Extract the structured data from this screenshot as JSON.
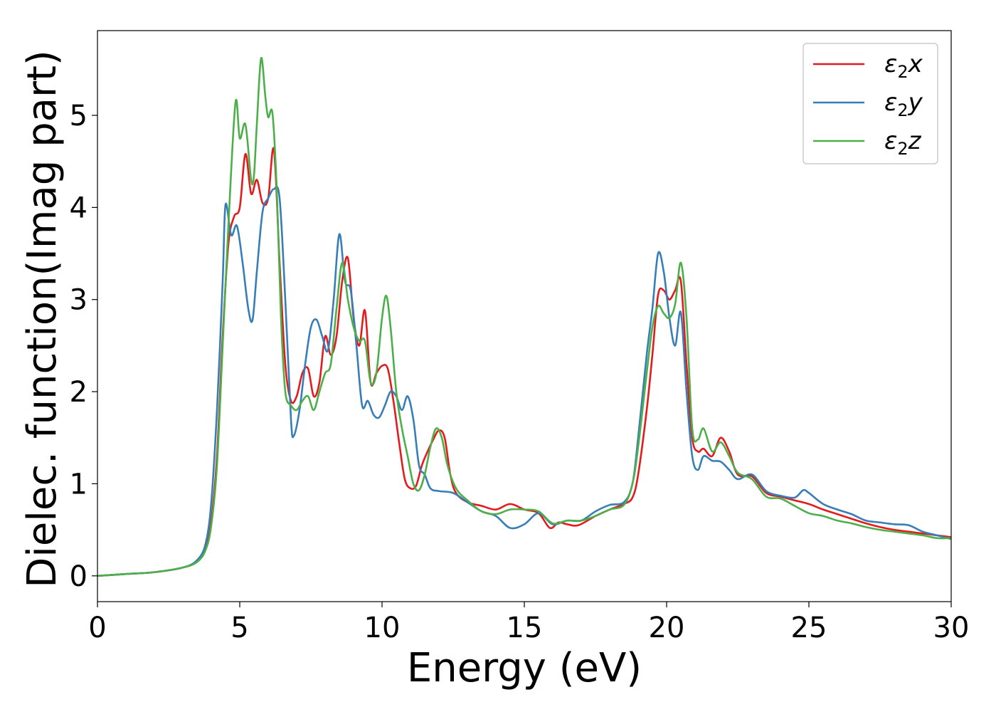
{
  "chart_data": {
    "type": "line",
    "title": "",
    "xlabel": "Energy (eV)",
    "ylabel": "Dielec. function(Imag part)",
    "xlim": [
      0,
      30
    ],
    "ylim": [
      -0.28,
      5.92
    ],
    "xticks": [
      0,
      5,
      10,
      15,
      20,
      25,
      30
    ],
    "yticks": [
      0,
      1,
      2,
      3,
      4,
      5
    ],
    "grid": false,
    "legend_position": "top-right",
    "series": [
      {
        "name": "ε₂x",
        "name_main": "ε",
        "name_sub": "2",
        "name_tail": "x",
        "color": "#e41a1c",
        "x": [
          0,
          1,
          2,
          3,
          3.5,
          3.8,
          4.0,
          4.2,
          4.4,
          4.6,
          4.8,
          5.0,
          5.2,
          5.4,
          5.6,
          5.8,
          6.0,
          6.2,
          6.4,
          6.6,
          6.8,
          7.0,
          7.2,
          7.4,
          7.6,
          7.8,
          8.0,
          8.2,
          8.4,
          8.6,
          8.8,
          9.0,
          9.2,
          9.4,
          9.6,
          9.8,
          10.0,
          10.2,
          10.4,
          10.6,
          10.8,
          11.0,
          11.2,
          11.4,
          11.6,
          11.8,
          12.0,
          12.2,
          12.4,
          12.6,
          13.0,
          13.5,
          14.0,
          14.5,
          15.0,
          15.5,
          15.9,
          16.2,
          16.5,
          16.9,
          17.5,
          18.0,
          18.5,
          18.8,
          19.0,
          19.3,
          19.5,
          19.7,
          19.9,
          20.1,
          20.3,
          20.5,
          20.7,
          20.9,
          21.1,
          21.3,
          21.6,
          21.9,
          22.2,
          22.5,
          23.0,
          23.5,
          24.0,
          24.5,
          25.0,
          25.5,
          26.0,
          26.5,
          27.0,
          27.5,
          28.0,
          28.5,
          29.0,
          29.5,
          30.0
        ],
        "y": [
          0,
          0.02,
          0.04,
          0.09,
          0.16,
          0.3,
          0.6,
          1.3,
          2.6,
          3.6,
          3.9,
          4.0,
          4.58,
          4.15,
          4.3,
          4.05,
          4.1,
          4.63,
          3.4,
          2.3,
          1.9,
          1.95,
          2.2,
          2.25,
          1.95,
          2.1,
          2.6,
          2.4,
          2.6,
          3.2,
          3.45,
          2.8,
          2.5,
          2.88,
          2.1,
          2.2,
          2.28,
          2.25,
          1.9,
          1.45,
          1.05,
          0.95,
          0.98,
          1.2,
          1.35,
          1.48,
          1.58,
          1.5,
          1.1,
          0.9,
          0.8,
          0.76,
          0.72,
          0.78,
          0.72,
          0.68,
          0.52,
          0.58,
          0.56,
          0.55,
          0.65,
          0.72,
          0.78,
          0.85,
          1.1,
          1.8,
          2.4,
          3.05,
          3.1,
          3.0,
          3.1,
          3.2,
          2.3,
          1.5,
          1.35,
          1.38,
          1.3,
          1.5,
          1.35,
          1.1,
          1.08,
          0.9,
          0.86,
          0.82,
          0.78,
          0.72,
          0.67,
          0.62,
          0.57,
          0.53,
          0.5,
          0.48,
          0.46,
          0.44,
          0.42
        ]
      },
      {
        "name": "ε₂y",
        "name_main": "ε",
        "name_sub": "2",
        "name_tail": "y",
        "color": "#377eb8",
        "x": [
          0,
          1,
          2,
          3,
          3.5,
          3.8,
          4.0,
          4.2,
          4.4,
          4.5,
          4.7,
          4.9,
          5.1,
          5.3,
          5.45,
          5.6,
          5.8,
          6.0,
          6.2,
          6.4,
          6.6,
          6.8,
          6.9,
          7.1,
          7.3,
          7.5,
          7.7,
          7.9,
          8.1,
          8.3,
          8.5,
          8.7,
          8.9,
          9.1,
          9.3,
          9.5,
          9.7,
          9.9,
          10.1,
          10.3,
          10.5,
          10.7,
          10.9,
          11.1,
          11.3,
          11.5,
          11.7,
          12.0,
          12.5,
          13.0,
          13.5,
          14.0,
          14.5,
          15.0,
          15.5,
          16.0,
          16.5,
          17.0,
          17.5,
          18.0,
          18.5,
          18.8,
          19.0,
          19.3,
          19.5,
          19.7,
          19.9,
          20.1,
          20.3,
          20.5,
          20.7,
          20.9,
          21.1,
          21.3,
          21.6,
          21.9,
          22.2,
          22.5,
          23.0,
          23.5,
          24.0,
          24.5,
          24.8,
          25.0,
          25.5,
          26.0,
          26.5,
          27.0,
          27.5,
          28.0,
          28.5,
          29.0,
          29.5,
          30.0
        ],
        "y": [
          0,
          0.02,
          0.04,
          0.09,
          0.17,
          0.35,
          0.8,
          1.8,
          3.2,
          4.03,
          3.7,
          3.8,
          3.4,
          2.9,
          2.78,
          3.3,
          3.95,
          4.1,
          4.2,
          4.1,
          3.0,
          1.7,
          1.52,
          1.8,
          2.3,
          2.7,
          2.78,
          2.6,
          2.45,
          3.0,
          3.71,
          3.2,
          3.1,
          2.5,
          1.85,
          1.9,
          1.75,
          1.72,
          1.85,
          2.0,
          1.95,
          1.8,
          1.95,
          1.7,
          1.2,
          1.1,
          0.95,
          0.92,
          0.9,
          0.8,
          0.7,
          0.65,
          0.52,
          0.56,
          0.68,
          0.56,
          0.6,
          0.6,
          0.7,
          0.77,
          0.8,
          1.0,
          1.5,
          2.4,
          2.9,
          3.5,
          3.3,
          2.8,
          2.5,
          2.86,
          2.0,
          1.3,
          1.15,
          1.3,
          1.25,
          1.24,
          1.15,
          1.05,
          1.1,
          0.92,
          0.87,
          0.85,
          0.93,
          0.9,
          0.78,
          0.72,
          0.67,
          0.6,
          0.58,
          0.56,
          0.55,
          0.48,
          0.44,
          0.4
        ]
      },
      {
        "name": "ε₂z",
        "name_main": "ε",
        "name_sub": "2",
        "name_tail": "z",
        "color": "#4daf4a",
        "x": [
          0,
          1,
          2,
          3,
          3.5,
          3.8,
          4.0,
          4.2,
          4.4,
          4.6,
          4.85,
          5.0,
          5.2,
          5.4,
          5.5,
          5.6,
          5.75,
          5.9,
          6.0,
          6.15,
          6.3,
          6.45,
          6.6,
          6.8,
          7.0,
          7.2,
          7.4,
          7.6,
          7.8,
          8.0,
          8.2,
          8.4,
          8.6,
          8.8,
          9.0,
          9.2,
          9.4,
          9.6,
          9.8,
          10.0,
          10.15,
          10.3,
          10.5,
          10.7,
          10.9,
          11.1,
          11.3,
          11.5,
          11.7,
          11.9,
          12.1,
          12.3,
          12.6,
          13.0,
          13.5,
          14.0,
          14.5,
          15.0,
          15.5,
          16.0,
          16.5,
          17.0,
          17.5,
          18.0,
          18.5,
          18.8,
          19.0,
          19.3,
          19.5,
          19.7,
          19.9,
          20.1,
          20.3,
          20.5,
          20.7,
          20.9,
          21.1,
          21.3,
          21.6,
          21.9,
          22.2,
          22.5,
          23.0,
          23.5,
          24.0,
          24.5,
          25.0,
          25.5,
          26.0,
          26.5,
          27.0,
          27.5,
          28.0,
          28.5,
          29.0,
          29.5,
          30.0
        ],
        "y": [
          0,
          0.02,
          0.04,
          0.09,
          0.15,
          0.28,
          0.55,
          1.2,
          2.5,
          3.8,
          5.14,
          4.75,
          4.9,
          4.3,
          4.35,
          4.9,
          5.62,
          5.2,
          4.98,
          5.02,
          4.2,
          2.8,
          2.0,
          1.85,
          1.8,
          1.9,
          1.95,
          1.8,
          2.0,
          2.2,
          2.3,
          2.9,
          3.4,
          3.0,
          2.7,
          2.55,
          2.55,
          2.1,
          2.2,
          2.8,
          3.04,
          2.7,
          2.0,
          1.6,
          1.3,
          1.0,
          0.93,
          1.1,
          1.4,
          1.6,
          1.5,
          1.2,
          0.95,
          0.82,
          0.7,
          0.67,
          0.72,
          0.72,
          0.7,
          0.57,
          0.6,
          0.6,
          0.65,
          0.72,
          0.77,
          1.0,
          1.4,
          2.2,
          2.7,
          2.93,
          2.85,
          2.8,
          2.95,
          3.4,
          2.8,
          1.6,
          1.48,
          1.6,
          1.35,
          1.45,
          1.3,
          1.12,
          1.05,
          0.86,
          0.84,
          0.76,
          0.68,
          0.65,
          0.6,
          0.57,
          0.53,
          0.5,
          0.48,
          0.46,
          0.44,
          0.41,
          0.41
        ]
      }
    ]
  }
}
